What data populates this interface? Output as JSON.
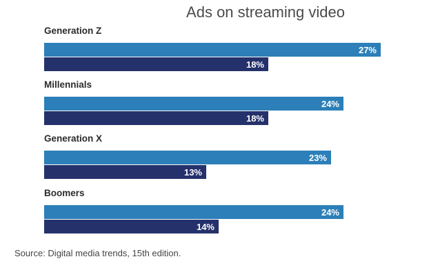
{
  "chart_data": {
    "type": "bar",
    "orientation": "horizontal",
    "title": "Ads on streaming video",
    "categories": [
      "Generation Z",
      "Millennials",
      "Generation X",
      "Boomers"
    ],
    "series": [
      {
        "values": [
          27,
          24,
          23,
          24
        ],
        "color": "#2c7fb8"
      },
      {
        "values": [
          18,
          18,
          13,
          14
        ],
        "color": "#25316b"
      }
    ],
    "value_suffix": "%",
    "xlim": [
      0,
      27
    ],
    "grid": false,
    "legend": "none"
  },
  "source": "Source: Digital media trends, 15th edition."
}
